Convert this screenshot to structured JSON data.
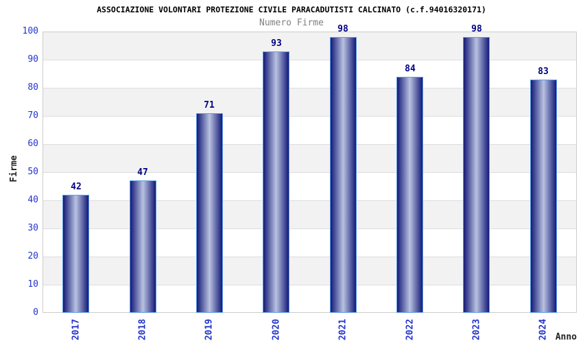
{
  "header": {
    "title": "ASSOCIAZIONE VOLONTARI PROTEZIONE CIVILE PARACADUTISTI CALCINATO (c.f.94016320171)",
    "subtitle": "Numero Firme"
  },
  "chart_data": {
    "type": "bar",
    "title": "Numero Firme",
    "categories": [
      "2017",
      "2018",
      "2019",
      "2020",
      "2021",
      "2022",
      "2023",
      "2024"
    ],
    "values": [
      42,
      47,
      71,
      93,
      98,
      84,
      98,
      83
    ],
    "xlabel": "Anno",
    "ylabel": "Firme",
    "ylim": [
      0,
      100
    ],
    "yticks": [
      0,
      10,
      20,
      30,
      40,
      50,
      60,
      70,
      80,
      90,
      100
    ],
    "grid": true,
    "legend": false,
    "band_fill": "alternating horizontal bands every 10 units",
    "colors": {
      "bar_dark": "#141a78",
      "bar_light": "#b9c2e0",
      "bar_border": "#5b9ce6",
      "tick_text": "#2233cc",
      "value_label": "#000080",
      "band_gray": "#f2f2f2",
      "grid_line": "#dddddd",
      "plot_border": "#cccccc",
      "subtitle_text": "#808080",
      "title_text": "#000000"
    }
  }
}
